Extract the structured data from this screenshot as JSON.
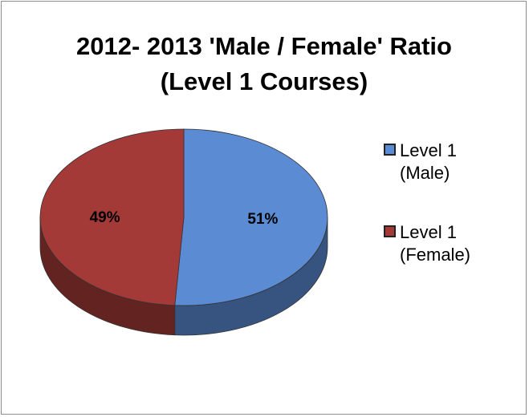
{
  "chart_data": {
    "type": "pie",
    "title": [
      "2012- 2013 'Male / Female' Ratio",
      "(Level 1 Courses)"
    ],
    "categories": [
      "Level 1 (Male)",
      "Level 1 (Female)"
    ],
    "values": [
      51,
      49
    ],
    "value_labels": [
      "51%",
      "49%"
    ],
    "colors": [
      "#5b8bd3",
      "#a33a37"
    ],
    "legend": "right"
  }
}
